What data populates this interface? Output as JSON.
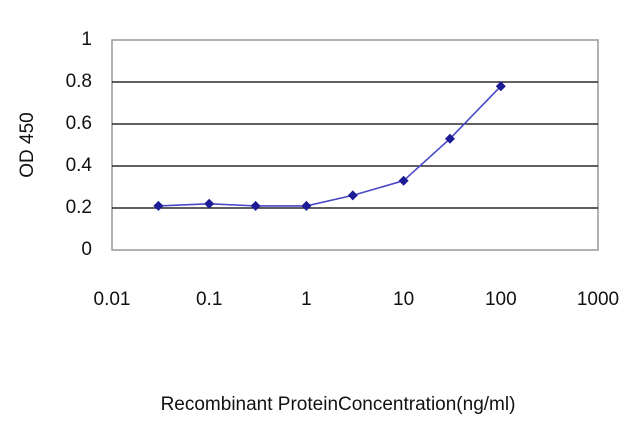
{
  "chart_data": {
    "type": "line",
    "x": [
      0.03,
      0.1,
      0.3,
      1,
      3,
      10,
      30,
      100
    ],
    "values": [
      0.21,
      0.22,
      0.21,
      0.21,
      0.26,
      0.33,
      0.53,
      0.78
    ],
    "color": "#1c1c96",
    "line_color": "#4848c8",
    "x_label": "Recombinant ProteinConcentration(ng/ml)",
    "y_label": "OD 450",
    "xscale": "log",
    "xlim": [
      0.01,
      1000
    ],
    "xticks": [
      0.01,
      0.1,
      1,
      10,
      100,
      1000
    ],
    "ylim": [
      0,
      1
    ],
    "yticks": [
      0,
      0.2,
      0.4,
      0.6,
      0.8,
      1
    ],
    "grid": true
  }
}
